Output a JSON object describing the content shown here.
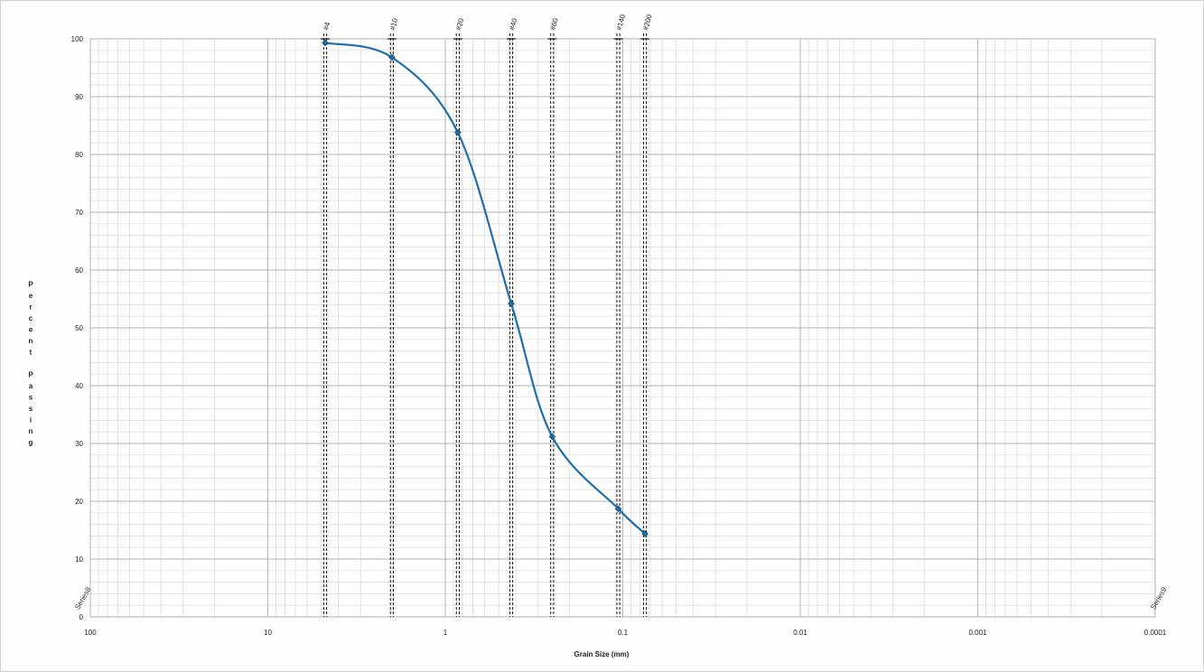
{
  "chart_data": {
    "type": "line",
    "title": "",
    "xlabel": "Grain Size (mm)",
    "ylabel": "Percent Passing",
    "x_scale": "log",
    "x_reversed": true,
    "xlim": [
      100,
      0.0001
    ],
    "ylim": [
      0,
      100
    ],
    "x_ticks": [
      100,
      10,
      1,
      0.1,
      0.01,
      0.001,
      0.0001
    ],
    "x_tick_labels": [
      "100",
      "10",
      "1",
      "0.1",
      "0.01",
      "0.001",
      "0.0001"
    ],
    "y_ticks": [
      0,
      10,
      20,
      30,
      40,
      50,
      60,
      70,
      80,
      90,
      100
    ],
    "y_tick_labels": [
      "0",
      "10",
      "20",
      "30",
      "40",
      "50",
      "60",
      "70",
      "80",
      "90",
      "100"
    ],
    "grid": true,
    "legend": "none",
    "series": [
      {
        "type": "line",
        "color": "#1f6fa8",
        "x": [
          4.75,
          2.0,
          0.85,
          0.425,
          0.25,
          0.106,
          0.075
        ],
        "y": [
          99.3,
          96.8,
          83.8,
          54.2,
          31.2,
          18.7,
          14.4
        ]
      }
    ],
    "sieves": [
      {
        "label": "#4",
        "size": 4.75
      },
      {
        "label": "#10",
        "size": 2.0
      },
      {
        "label": "#20",
        "size": 0.85
      },
      {
        "label": "#40",
        "size": 0.425
      },
      {
        "label": "#60",
        "size": 0.25
      },
      {
        "label": "#140",
        "size": 0.106
      },
      {
        "label": "#200",
        "size": 0.075
      }
    ],
    "corner_labels": [
      {
        "text": "Series8",
        "x": 100,
        "y": 3
      },
      {
        "text": "Series9",
        "x": 0.0001,
        "y": 3
      }
    ]
  },
  "colors": {
    "curve": "#1f6fa8",
    "grid_major": "#b4b4b4",
    "grid_minor": "#dcdcdc",
    "sieve_line": "#111111"
  }
}
